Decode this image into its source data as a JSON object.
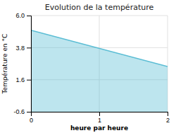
{
  "chart_data": {
    "type": "area",
    "title": "Evolution de la température",
    "x_label": "heure par heure",
    "y_label": "Température en °C",
    "x": [
      0,
      2
    ],
    "values": [
      5.0,
      2.5
    ],
    "color": "#5bbdd4",
    "xlim": [
      0,
      2
    ],
    "ylim": [
      -0.6,
      6.0
    ],
    "xticks": [
      0,
      1,
      2
    ],
    "yticks": [
      -0.6,
      1.6,
      3.8,
      {
        "value": 6.0,
        "label": "6.0"
      }
    ],
    "grid": true
  }
}
